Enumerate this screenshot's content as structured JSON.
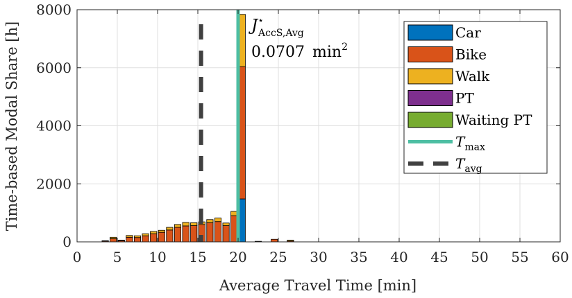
{
  "chart_data": {
    "type": "bar",
    "stacked": true,
    "title": "",
    "xlabel": "Average Travel Time [min]",
    "ylabel": "Time-based Modal Share [h]",
    "xlim": [
      0,
      60
    ],
    "ylim": [
      0,
      8000
    ],
    "xticks": [
      0,
      5,
      10,
      15,
      20,
      25,
      30,
      35,
      40,
      45,
      50,
      55,
      60
    ],
    "yticks": [
      0,
      2000,
      4000,
      6000,
      8000
    ],
    "grid": true,
    "legend_position": "top-right",
    "x": [
      3.5,
      4.5,
      5.5,
      6.5,
      7.5,
      8.5,
      9.5,
      10.5,
      11.5,
      12.5,
      13.5,
      14.5,
      15.5,
      16.5,
      17.5,
      18.5,
      19.5,
      20.5,
      22.5,
      24.5,
      26.5
    ],
    "series": [
      {
        "name": "Car",
        "color": "#0072BD",
        "values": [
          0,
          0,
          0,
          0,
          0,
          0,
          0,
          0,
          0,
          0,
          0,
          0,
          0,
          0,
          0,
          0,
          0,
          1480,
          0,
          0,
          0
        ]
      },
      {
        "name": "Bike",
        "color": "#D95319",
        "values": [
          30,
          110,
          40,
          160,
          150,
          210,
          280,
          330,
          410,
          500,
          550,
          560,
          600,
          660,
          700,
          560,
          900,
          4560,
          20,
          90,
          30
        ]
      },
      {
        "name": "Walk",
        "color": "#EDB120",
        "values": [
          10,
          50,
          20,
          60,
          60,
          70,
          80,
          70,
          90,
          100,
          120,
          100,
          90,
          110,
          120,
          90,
          150,
          1800,
          0,
          0,
          30
        ]
      },
      {
        "name": "PT",
        "color": "#7E2F8E",
        "values": [
          0,
          0,
          0,
          0,
          0,
          0,
          0,
          0,
          0,
          0,
          0,
          0,
          0,
          0,
          0,
          0,
          0,
          0,
          0,
          0,
          0
        ]
      },
      {
        "name": "Waiting PT",
        "color": "#77AC30",
        "values": [
          0,
          0,
          0,
          0,
          0,
          0,
          0,
          0,
          0,
          0,
          0,
          0,
          0,
          0,
          0,
          0,
          0,
          0,
          0,
          0,
          0
        ]
      }
    ],
    "bar_width": 0.8,
    "vlines": [
      {
        "name": "T_max",
        "x": 20,
        "color": "#4DBEA3",
        "style": "solid"
      },
      {
        "name": "T_avg",
        "x": 15.4,
        "color": "#404040",
        "style": "dashed"
      }
    ],
    "legend_line_labels": {
      "t_max": {
        "base": "T",
        "sub": "max"
      },
      "t_avg": {
        "base": "T",
        "sub": "avg"
      }
    },
    "annotation": {
      "symbol": "J",
      "superscript": "⋆",
      "subscript": "AccS,Avg",
      "value": "0.0707",
      "unit": "min",
      "unit_exponent": "2"
    }
  }
}
